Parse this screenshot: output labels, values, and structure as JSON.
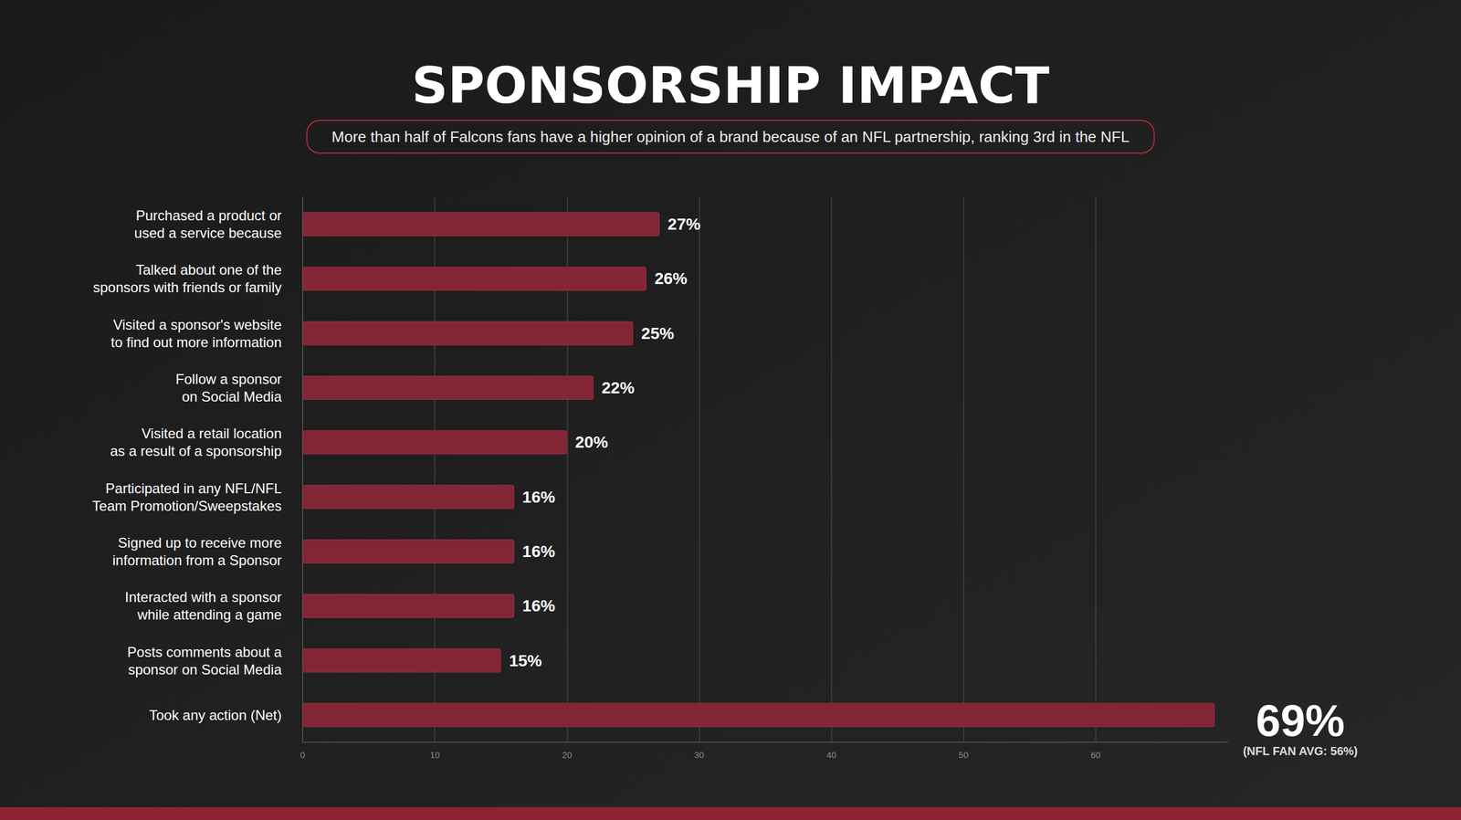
{
  "chart_data": {
    "type": "bar",
    "orientation": "horizontal",
    "title": "SPONSORSHIP IMPACT",
    "subtitle": "More than half of Falcons fans have a higher opinion of a brand because of an NFL partnership, ranking 3rd in the NFL",
    "categories": [
      "Purchased a product or\nused a service because",
      "Talked about one of the\nsponsors with friends or family",
      "Visited a sponsor's website\nto find out more information",
      "Follow a sponsor\non Social Media",
      "Visited a retail location\nas a result of a sponsorship",
      "Participated in any NFL/NFL\nTeam Promotion/Sweepstakes",
      "Signed up to receive more\ninformation from a Sponsor",
      "Interacted with a sponsor\nwhile attending a game",
      "Posts comments about a\nsponsor on Social Media",
      "Took any action (Net)"
    ],
    "values": [
      27,
      26,
      25,
      22,
      20,
      16,
      16,
      16,
      15,
      69
    ],
    "value_labels": [
      "27%",
      "26%",
      "25%",
      "22%",
      "20%",
      "16%",
      "16%",
      "16%",
      "15%",
      "69%"
    ],
    "data_labels": true,
    "color": "#822635",
    "xlim": [
      0,
      70
    ],
    "xticks": [
      0,
      10,
      20,
      30,
      40,
      50,
      60
    ],
    "grid": true,
    "annotations": [
      "(NFL FAN AVG: 56%)"
    ]
  }
}
